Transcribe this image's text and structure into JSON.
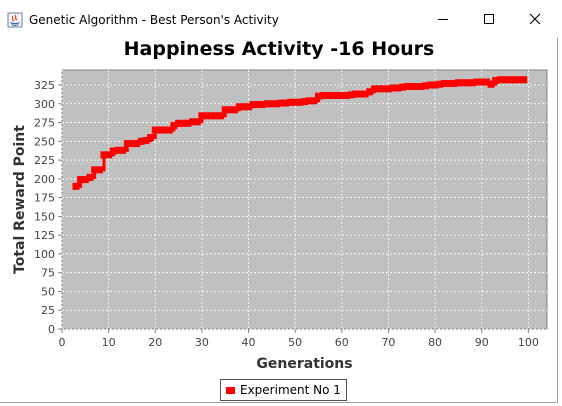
{
  "window": {
    "title": "Genetic Algorithm - Best Person's Activity",
    "minimize_icon": "minimize-icon",
    "maximize_icon": "maximize-icon",
    "close_icon": "close-icon"
  },
  "colors": {
    "plot_background": "#c0c0c0",
    "series": "#ff0000",
    "gridline": "#ffffff"
  },
  "legend": {
    "placement": "bottom-center"
  },
  "chart_data": {
    "type": "line",
    "title": "Happiness Activity -16 Hours",
    "xlabel": "Generations",
    "ylabel": "Total Reward Point",
    "xlim": [
      0,
      104
    ],
    "ylim": [
      0,
      345
    ],
    "xticks": [
      0,
      10,
      20,
      30,
      40,
      50,
      60,
      70,
      80,
      90,
      100
    ],
    "yticks": [
      0,
      25,
      50,
      75,
      100,
      125,
      150,
      175,
      200,
      225,
      250,
      275,
      300,
      325
    ],
    "grid": true,
    "series": [
      {
        "name": "Experiment No 1",
        "x": [
          3,
          4,
          5,
          6,
          7,
          8,
          9,
          10,
          11,
          12,
          13,
          14,
          15,
          16,
          17,
          18,
          19,
          20,
          21,
          22,
          23,
          24,
          25,
          26,
          27,
          28,
          29,
          30,
          31,
          32,
          33,
          34,
          35,
          36,
          37,
          38,
          39,
          40,
          41,
          42,
          43,
          44,
          45,
          46,
          47,
          48,
          49,
          50,
          51,
          52,
          53,
          54,
          55,
          56,
          57,
          58,
          59,
          60,
          61,
          62,
          63,
          64,
          65,
          66,
          67,
          68,
          69,
          70,
          71,
          72,
          73,
          74,
          75,
          76,
          77,
          78,
          79,
          80,
          81,
          82,
          83,
          84,
          85,
          86,
          87,
          88,
          89,
          90,
          91,
          92,
          93,
          94,
          95,
          96,
          97,
          98,
          99
        ],
        "values": [
          190,
          199,
          199,
          202,
          212,
          212,
          232,
          232,
          237,
          238,
          238,
          247,
          247,
          247,
          250,
          251,
          255,
          265,
          265,
          265,
          265,
          271,
          274,
          274,
          274,
          276,
          276,
          284,
          284,
          284,
          284,
          284,
          292,
          292,
          292,
          296,
          296,
          296,
          299,
          299,
          299,
          300,
          300,
          300,
          301,
          301,
          302,
          302,
          302,
          303,
          304,
          304,
          310,
          311,
          311,
          311,
          311,
          311,
          311,
          312,
          313,
          313,
          313,
          316,
          320,
          320,
          320,
          320,
          321,
          321,
          322,
          323,
          323,
          323,
          323,
          324,
          325,
          325,
          326,
          327,
          327,
          327,
          328,
          328,
          328,
          328,
          329,
          329,
          329,
          326,
          331,
          332,
          332,
          332,
          332,
          332,
          332
        ]
      }
    ]
  }
}
